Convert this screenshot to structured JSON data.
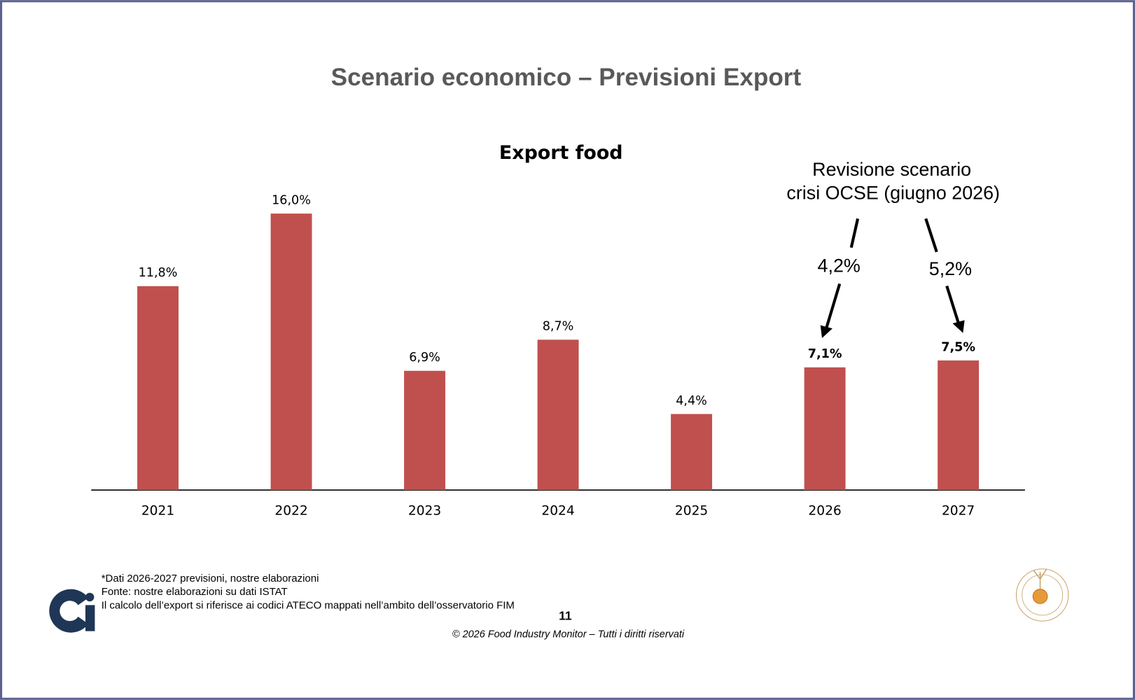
{
  "page_title": "Scenario economico – Previsioni Export",
  "chart_data": {
    "type": "bar",
    "title": "Export food",
    "categories": [
      "2021",
      "2022",
      "2023",
      "2024",
      "2025",
      "2026",
      "2027"
    ],
    "values": [
      11.8,
      16.0,
      6.9,
      8.7,
      4.4,
      7.1,
      7.5
    ],
    "value_labels": [
      "11,8%",
      "16,0%",
      "6,9%",
      "8,7%",
      "4,4%",
      "7,1%",
      "7,5%"
    ],
    "color": "#c0504d",
    "annotations": {
      "title": [
        "Revisione scenario",
        "crisi OCSE (giugno 2026)"
      ],
      "values": [
        "4,2%",
        "5,2%"
      ]
    }
  },
  "footnotes": [
    "*Dati 2026-2027 previsioni, nostre elaborazioni",
    "Fonte: nostre elaborazioni su dati ISTAT",
    "Il calcolo dell’export si riferisce ai codici ATECO mappati nell’ambito dell’osservatorio FIM"
  ],
  "page_number": "11",
  "copyright": "© 2026 Food Industry Monitor – Tutti i diritti riservati"
}
